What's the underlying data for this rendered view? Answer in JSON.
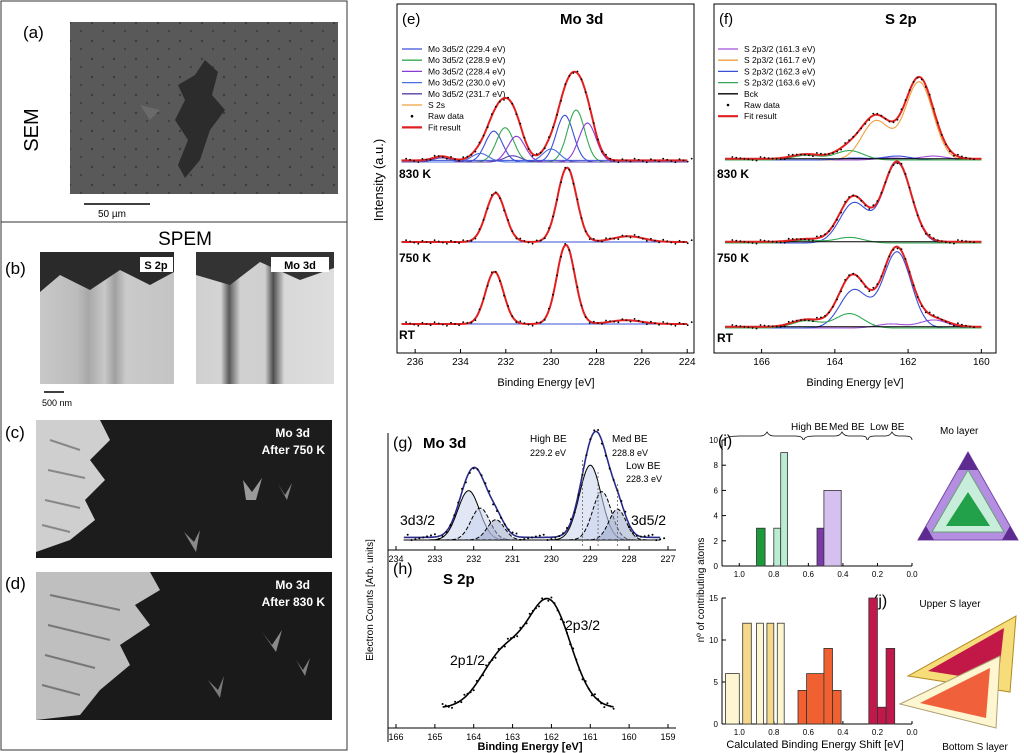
{
  "panels": {
    "a": {
      "letter": "(a)",
      "side_label": "SEM",
      "scalebar": "50 µm"
    },
    "spem": {
      "title": "SPEM"
    },
    "b": {
      "letter": "(b)",
      "left_tag": "S 2p",
      "right_tag": "Mo 3d",
      "scalebar": "500 nm"
    },
    "c": {
      "letter": "(c)",
      "tag_line1": "Mo 3d",
      "tag_line2": "After 750 K"
    },
    "d": {
      "letter": "(d)",
      "tag_line1": "Mo 3d",
      "tag_line2": "After 830 K"
    },
    "e": {
      "letter": "(e)",
      "title": "Mo 3d",
      "ylabel": "Intensity (a.u.)",
      "xlabel": "Binding Energy [eV]",
      "temps": [
        "830 K",
        "750 K",
        "RT"
      ],
      "legend": [
        {
          "text": "Mo 3d5/2 (229.4 eV)",
          "color": "#3a4fd8"
        },
        {
          "text": "Mo 3d5/2 (228.9 eV)",
          "color": "#34a853"
        },
        {
          "text": "Mo 3d5/2 (228.4 eV)",
          "color": "#8a3bd6"
        },
        {
          "text": "Mo 3d5/2 (230.0 eV)",
          "color": "#4a6fe0"
        },
        {
          "text": "Mo 3d5/2 (231.7 eV)",
          "color": "#5a3fa8"
        },
        {
          "text": "S 2s",
          "color": "#f0a040"
        },
        {
          "text": "Raw data",
          "color": "#000000"
        },
        {
          "text": "Fit result",
          "color": "#e02020"
        }
      ],
      "xticks": [
        "236",
        "234",
        "232",
        "230",
        "228",
        "226",
        "224"
      ]
    },
    "f": {
      "letter": "(f)",
      "title": "S 2p",
      "xlabel": "Binding Energy [eV]",
      "temps": [
        "830 K",
        "750 K",
        "RT"
      ],
      "legend": [
        {
          "text": "S 2p3/2 (161.3 eV)",
          "color": "#a050d8"
        },
        {
          "text": "S 2p3/2 (161.7 eV)",
          "color": "#f0a040"
        },
        {
          "text": "S 2p3/2 (162.3 eV)",
          "color": "#3a4fd8"
        },
        {
          "text": "S 2p3/2 (163.6 eV)",
          "color": "#34a853"
        },
        {
          "text": "Bck",
          "color": "#000000"
        },
        {
          "text": "Raw data",
          "color": "#000000"
        },
        {
          "text": "Fit result",
          "color": "#e02020"
        }
      ],
      "xticks": [
        "166",
        "164",
        "162",
        "160"
      ]
    },
    "g": {
      "letter": "(g)",
      "title": "Mo 3d",
      "ylabel": "Electron Counts [Arb. units]",
      "ann_high": "High BE",
      "ann_high_val": "229.2 eV",
      "ann_med": "Med BE",
      "ann_med_val": "228.8 eV",
      "ann_low": "Low BE",
      "ann_low_val": "228.3 eV",
      "peak_left": "3d3/2",
      "peak_right": "3d5/2",
      "xticks": [
        "234",
        "233",
        "232",
        "231",
        "230",
        "229",
        "228",
        "227"
      ]
    },
    "h": {
      "letter": "(h)",
      "title": "S 2p",
      "xlabel": "Binding Energy [eV]",
      "peak_left": "2p1/2",
      "peak_right": "2p3/2",
      "xticks": [
        "166",
        "165",
        "164",
        "163",
        "162",
        "161",
        "160",
        "159"
      ]
    },
    "i": {
      "letter": "(i)",
      "groups": [
        "High BE",
        "Med BE",
        "Low BE"
      ],
      "side_label": "Mo layer",
      "yticks": [
        "0",
        "2",
        "4",
        "6",
        "8",
        "10"
      ],
      "xticks": [
        "1.0",
        "0.8",
        "0.6",
        "0.4",
        "0.2",
        "0.0"
      ]
    },
    "j": {
      "letter": "(j)",
      "upper_label": "Upper S layer",
      "bottom_label": "Bottom S layer",
      "yticks": [
        "0",
        "5",
        "10",
        "15"
      ],
      "xticks": [
        "1.0",
        "0.8",
        "0.6",
        "0.4",
        "0.2",
        "0.0"
      ],
      "xlabel": "Calculated Binding Energy Shift [eV]"
    },
    "ij_ylabel": "nº of contributing atoms"
  },
  "chart_data": [
    {
      "id": "i",
      "type": "bar",
      "xlabel": "Calculated Binding Energy Shift [eV]",
      "ylabel": "nº of contributing atoms",
      "xlim": [
        1.1,
        0.0
      ],
      "ylim": [
        0,
        10
      ],
      "bars": [
        {
          "x0": 0.9,
          "x1": 0.85,
          "value": 3,
          "color": "#1a9a3a"
        },
        {
          "x0": 0.8,
          "x1": 0.76,
          "value": 3,
          "color": "#b9ecd0"
        },
        {
          "x0": 0.76,
          "x1": 0.72,
          "value": 9,
          "color": "#b9ecd0"
        },
        {
          "x0": 0.55,
          "x1": 0.51,
          "value": 3,
          "color": "#7a3aa8"
        },
        {
          "x0": 0.51,
          "x1": 0.41,
          "value": 6,
          "color": "#d6c0f0"
        }
      ]
    },
    {
      "id": "j",
      "type": "bar",
      "xlabel": "Calculated Binding Energy Shift [eV]",
      "ylabel": "nº of contributing atoms",
      "xlim": [
        1.1,
        0.0
      ],
      "ylim": [
        0,
        15
      ],
      "bars": [
        {
          "x0": 1.08,
          "x1": 1.0,
          "value": 6,
          "color": "#fdf6d0"
        },
        {
          "x0": 0.98,
          "x1": 0.93,
          "value": 12,
          "color": "#f6d88a"
        },
        {
          "x0": 0.9,
          "x1": 0.86,
          "value": 12,
          "color": "#fdf6d0"
        },
        {
          "x0": 0.84,
          "x1": 0.8,
          "value": 12,
          "color": "#f6d88a"
        },
        {
          "x0": 0.78,
          "x1": 0.74,
          "value": 12,
          "color": "#fdf6d0"
        },
        {
          "x0": 0.66,
          "x1": 0.61,
          "value": 4,
          "color": "#f06030"
        },
        {
          "x0": 0.61,
          "x1": 0.51,
          "value": 6,
          "color": "#f06030"
        },
        {
          "x0": 0.51,
          "x1": 0.46,
          "value": 9,
          "color": "#f06030"
        },
        {
          "x0": 0.46,
          "x1": 0.41,
          "value": 4,
          "color": "#f06030"
        },
        {
          "x0": 0.25,
          "x1": 0.2,
          "value": 15,
          "color": "#c0184a"
        },
        {
          "x0": 0.2,
          "x1": 0.15,
          "value": 2,
          "color": "#c0184a"
        },
        {
          "x0": 0.15,
          "x1": 0.1,
          "value": 9,
          "color": "#c0184a"
        }
      ]
    }
  ]
}
